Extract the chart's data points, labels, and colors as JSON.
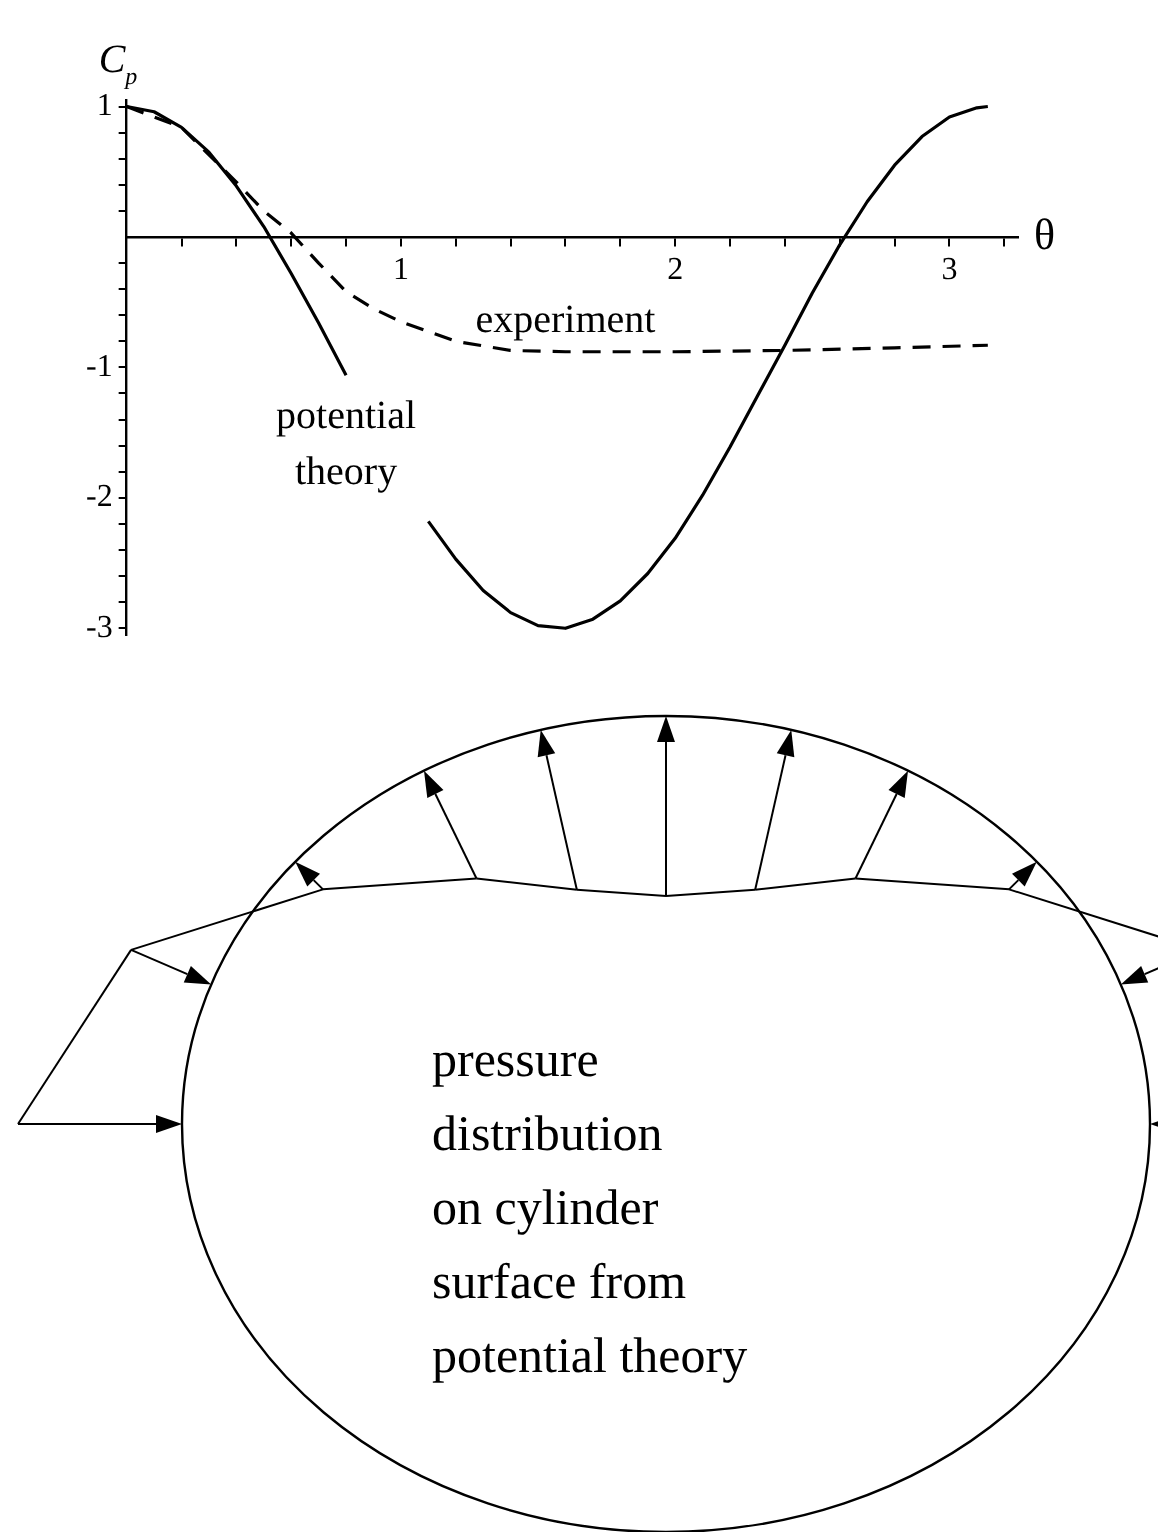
{
  "chart_data": {
    "type": "line",
    "xlabel": "θ",
    "ylabel": "C$_{p}$",
    "xlim": [
      0,
      3.25
    ],
    "ylim": [
      -3.05,
      1.05
    ],
    "xticks": [
      {
        "value": 0.2,
        "label": null
      },
      {
        "value": 0.4,
        "label": null
      },
      {
        "value": 0.6,
        "label": null
      },
      {
        "value": 0.8,
        "label": null
      },
      1,
      {
        "value": 1.2,
        "label": null
      },
      {
        "value": 1.4,
        "label": null
      },
      {
        "value": 1.6,
        "label": null
      },
      {
        "value": 1.8,
        "label": null
      },
      2,
      {
        "value": 2.2,
        "label": null
      },
      {
        "value": 2.4,
        "label": null
      },
      {
        "value": 2.6,
        "label": null
      },
      {
        "value": 2.8,
        "label": null
      },
      3,
      {
        "value": 3.2,
        "label": null
      }
    ],
    "yticks": [
      -3,
      {
        "value": -2.8,
        "label": null
      },
      {
        "value": -2.6,
        "label": null
      },
      {
        "value": -2.4,
        "label": null
      },
      {
        "value": -2.2,
        "label": null
      },
      -2,
      {
        "value": -1.8,
        "label": null
      },
      {
        "value": -1.6,
        "label": null
      },
      {
        "value": -1.4,
        "label": null
      },
      {
        "value": -1.2,
        "label": null
      },
      -1,
      {
        "value": -0.8,
        "label": null
      },
      {
        "value": -0.6,
        "label": null
      },
      {
        "value": -0.4,
        "label": null
      },
      {
        "value": -0.2,
        "label": null
      },
      {
        "value": 0.2,
        "label": null
      },
      {
        "value": 0.4,
        "label": null
      },
      {
        "value": 0.6,
        "label": null
      },
      {
        "value": 0.8,
        "label": null
      },
      1
    ],
    "grid": false,
    "legend": false,
    "marker": "none",
    "series": [
      {
        "name": "potential theory",
        "color": "#000000",
        "line_style": "solid",
        "x": [
          0,
          0.1,
          0.2,
          0.3,
          0.4,
          0.5,
          0.6,
          0.7,
          0.8,
          0.9,
          1.0,
          1.1,
          1.2,
          1.3,
          1.4,
          1.5,
          1.6,
          1.7,
          1.8,
          1.9,
          2.0,
          2.1,
          2.2,
          2.3,
          2.4,
          2.5,
          2.6,
          2.7,
          2.8,
          2.9,
          3.0,
          3.1,
          3.14
        ],
        "values": [
          1,
          0.96,
          0.84,
          0.65,
          0.39,
          0.08,
          -0.28,
          -0.66,
          -1.06,
          null,
          null,
          -2.18,
          -2.47,
          -2.71,
          -2.88,
          -2.98,
          -3.0,
          -2.93,
          -2.79,
          -2.58,
          -2.31,
          -1.98,
          -1.61,
          -1.22,
          -0.83,
          -0.43,
          -0.06,
          0.27,
          0.55,
          0.77,
          0.92,
          0.99,
          1
        ]
      },
      {
        "name": "experiment",
        "color": "#000000",
        "line_style": "dashed",
        "x": [
          0,
          0.2,
          0.4,
          0.5,
          0.6,
          0.7,
          0.8,
          0.9,
          1.0,
          1.2,
          1.4,
          1.6,
          2.0,
          2.4,
          2.8,
          3.14
        ],
        "values": [
          1,
          0.84,
          0.42,
          0.2,
          0.03,
          -0.2,
          -0.42,
          -0.55,
          -0.65,
          -0.8,
          -0.87,
          -0.88,
          -0.88,
          -0.87,
          -0.85,
          -0.83
        ]
      }
    ],
    "annotations": [
      "pressure\ndistribution\non cylinder\nsurface from\npotential theory"
    ]
  }
}
